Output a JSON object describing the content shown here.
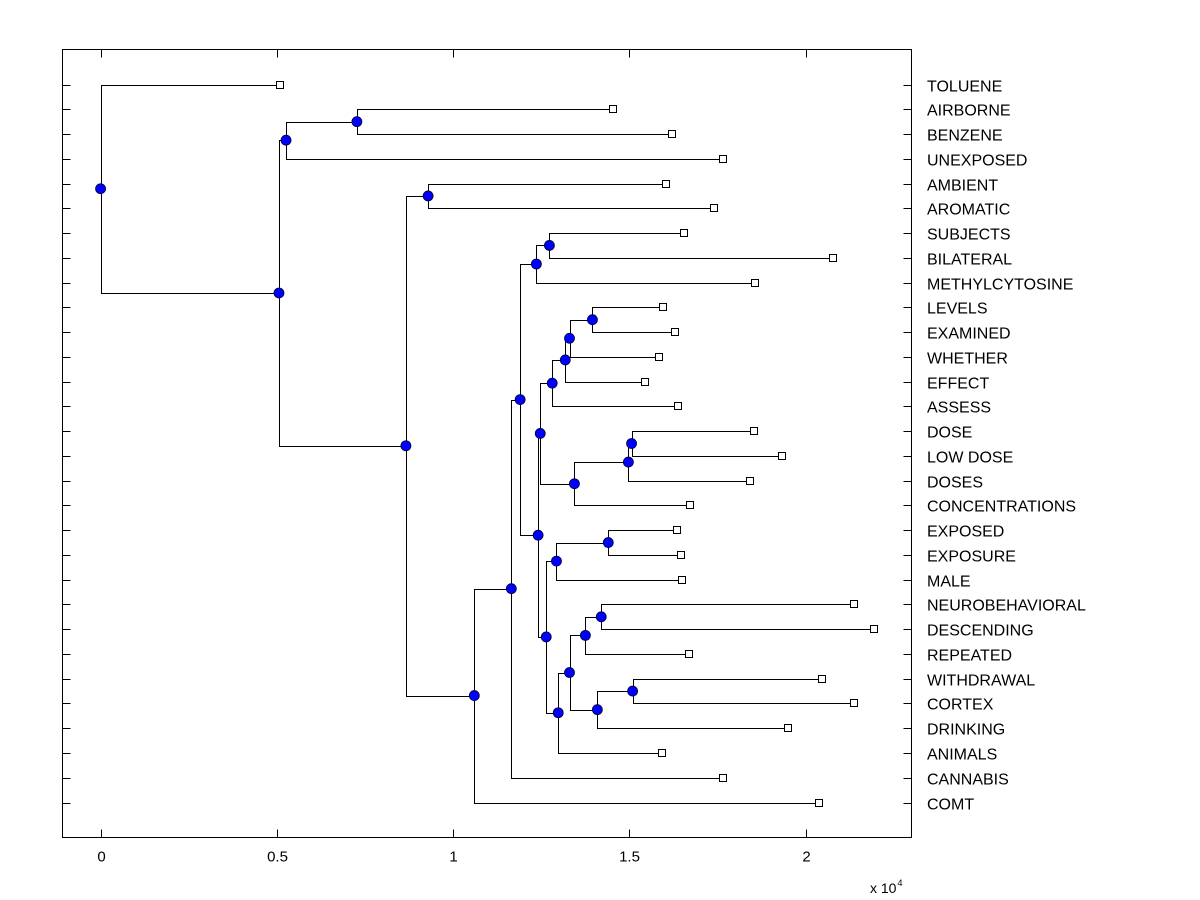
{
  "chart_data": {
    "type": "dendrogram",
    "title": "",
    "xlabel": "",
    "ylabel": "",
    "x_scale_multiplier_label": "x 10",
    "x_scale_exponent": "4",
    "xlim": [
      -0.108,
      2.3
    ],
    "x_ticks": [
      {
        "value": 0,
        "label": "0"
      },
      {
        "value": 0.5,
        "label": "0.5"
      },
      {
        "value": 1,
        "label": "1"
      },
      {
        "value": 1.5,
        "label": "1.5"
      },
      {
        "value": 2,
        "label": "2"
      }
    ],
    "colors": {
      "internal_node": "#0000ff",
      "leaf_marker": "#ffffff",
      "line": "#000000"
    },
    "leaves": [
      "TOLUENE",
      "AIRBORNE",
      "BENZENE",
      "UNEXPOSED",
      "AMBIENT",
      "AROMATIC",
      "SUBJECTS",
      "BILATERAL",
      "METHYLCYTOSINE",
      "LEVELS",
      "EXAMINED",
      "WHETHER",
      "EFFECT",
      "ASSESS",
      "DOSE",
      "LOW DOSE",
      "DOSES",
      "CONCENTRATIONS",
      "EXPOSED",
      "EXPOSURE",
      "MALE",
      "NEUROBEHAVIORAL",
      "DESCENDING",
      "REPEATED",
      "WITHDRAWAL",
      "CORTEX",
      "DRINKING",
      "ANIMALS",
      "CANNABIS",
      "COMT"
    ],
    "tree": {
      "x": 0,
      "children": [
        {
          "leaf": "TOLUENE",
          "x": 0.508
        },
        {
          "x": 0.506,
          "children": [
            {
              "x": 0.526,
              "children": [
                {
                  "x": 0.727,
                  "children": [
                    {
                      "leaf": "AIRBORNE",
                      "x": 1.452
                    },
                    {
                      "leaf": "BENZENE",
                      "x": 1.622
                    }
                  ]
                },
                {
                  "leaf": "UNEXPOSED",
                  "x": 1.764
                }
              ]
            },
            {
              "x": 0.866,
              "children": [
                {
                  "x": 0.929,
                  "children": [
                    {
                      "leaf": "AMBIENT",
                      "x": 1.605
                    },
                    {
                      "leaf": "AROMATIC",
                      "x": 1.739
                    }
                  ]
                },
                {
                  "x": 1.06,
                  "children": [
                    {
                      "x": 1.165,
                      "children": [
                        {
                          "x": 1.19,
                          "children": [
                            {
                              "x": 1.236,
                              "children": [
                                {
                                  "x": 1.273,
                                  "children": [
                                    {
                                      "leaf": "SUBJECTS",
                                      "x": 1.656
                                    },
                                    {
                                      "leaf": "BILATERAL",
                                      "x": 2.077
                                    }
                                  ]
                                },
                                {
                                  "leaf": "METHYLCYTOSINE",
                                  "x": 1.855
                                }
                              ]
                            },
                            {
                              "x": 1.241,
                              "children": [
                                {
                                  "x": 1.247,
                                  "children": [
                                    {
                                      "x": 1.281,
                                      "children": [
                                        {
                                          "x": 1.318,
                                          "children": [
                                            {
                                              "x": 1.33,
                                              "children": [
                                                {
                                                  "x": 1.395,
                                                  "children": [
                                                    {
                                                      "leaf": "LEVELS",
                                                      "x": 1.594
                                                    },
                                                    {
                                                      "leaf": "EXAMINED",
                                                      "x": 1.628
                                                    }
                                                  ]
                                                },
                                                {
                                                  "leaf": "WHETHER",
                                                  "x": 1.585
                                                }
                                              ]
                                            },
                                            {
                                              "leaf": "EFFECT",
                                              "x": 1.545
                                            }
                                          ]
                                        },
                                        {
                                          "leaf": "ASSESS",
                                          "x": 1.639
                                        }
                                      ]
                                    },
                                    {
                                      "x": 1.344,
                                      "children": [
                                        {
                                          "x": 1.497,
                                          "children": [
                                            {
                                              "x": 1.506,
                                              "children": [
                                                {
                                                  "leaf": "DOSE",
                                                  "x": 1.852
                                                },
                                                {
                                                  "leaf": "LOW DOSE",
                                                  "x": 1.932
                                                }
                                              ]
                                            },
                                            {
                                              "leaf": "DOSES",
                                              "x": 1.841
                                            }
                                          ]
                                        },
                                        {
                                          "leaf": "CONCENTRATIONS",
                                          "x": 1.673
                                        }
                                      ]
                                    }
                                  ]
                                },
                                {
                                  "x": 1.264,
                                  "children": [
                                    {
                                      "x": 1.293,
                                      "children": [
                                        {
                                          "x": 1.44,
                                          "children": [
                                            {
                                              "leaf": "EXPOSED",
                                              "x": 1.634
                                            },
                                            {
                                              "leaf": "EXPOSURE",
                                              "x": 1.645
                                            }
                                          ]
                                        },
                                        {
                                          "leaf": "MALE",
                                          "x": 1.648
                                        }
                                      ]
                                    },
                                    {
                                      "x": 1.298,
                                      "children": [
                                        {
                                          "x": 1.33,
                                          "children": [
                                            {
                                              "x": 1.375,
                                              "children": [
                                                {
                                                  "x": 1.42,
                                                  "children": [
                                                    {
                                                      "leaf": "NEUROBEHAVIORAL",
                                                      "x": 2.136
                                                    },
                                                    {
                                                      "leaf": "DESCENDING",
                                                      "x": 2.193
                                                    }
                                                  ]
                                                },
                                                {
                                                  "leaf": "REPEATED",
                                                  "x": 1.668
                                                }
                                              ]
                                            },
                                            {
                                              "x": 1.409,
                                              "children": [
                                                {
                                                  "x": 1.509,
                                                  "children": [
                                                    {
                                                      "leaf": "WITHDRAWAL",
                                                      "x": 2.045
                                                    },
                                                    {
                                                      "leaf": "CORTEX",
                                                      "x": 2.136
                                                    }
                                                  ]
                                                },
                                                {
                                                  "leaf": "DRINKING",
                                                  "x": 1.949
                                                }
                                              ]
                                            }
                                          ]
                                        },
                                        {
                                          "leaf": "ANIMALS",
                                          "x": 1.591
                                        }
                                      ]
                                    }
                                  ]
                                }
                              ]
                            }
                          ]
                        },
                        {
                          "leaf": "CANNABIS",
                          "x": 1.764
                        }
                      ]
                    },
                    {
                      "leaf": "COMT",
                      "x": 2.037
                    }
                  ]
                }
              ]
            }
          ]
        }
      ]
    }
  }
}
